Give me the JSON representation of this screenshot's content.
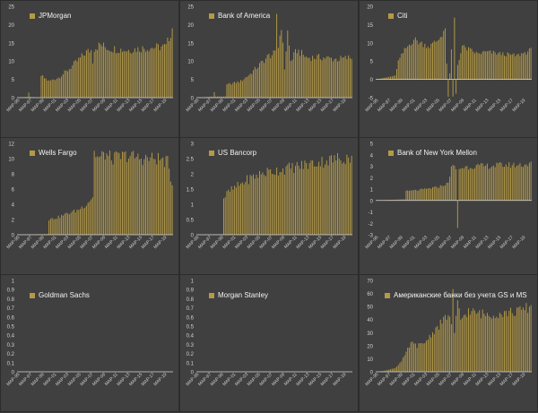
{
  "bar_color": "#b59a45",
  "text_color": "#d0d0d0",
  "x_tick_labels": [
    "MAP-95",
    "MAP-97",
    "MAP-99",
    "MAP-01",
    "MAP-03",
    "MAP-05",
    "MAP-07",
    "MAP-09",
    "MAP-11",
    "MAP-13",
    "MAP-15",
    "MAP-17",
    "MAP-19"
  ],
  "chart_data": [
    {
      "type": "bar",
      "title": "JPMorgan",
      "legend": "JPMorgan",
      "ylim": [
        0,
        25
      ],
      "yticks": [
        0,
        5,
        10,
        15,
        20,
        25
      ],
      "x": [
        "1995-Q1",
        "2019-Q4"
      ],
      "anchors": [
        [
          0,
          0
        ],
        [
          6,
          0.2
        ],
        [
          7,
          1.5
        ],
        [
          8,
          0.2
        ],
        [
          14,
          0
        ],
        [
          15,
          6.0
        ],
        [
          20,
          4.5
        ],
        [
          26,
          5.5
        ],
        [
          32,
          7.5
        ],
        [
          38,
          10.0
        ],
        [
          44,
          12.5
        ],
        [
          47,
          13.0
        ],
        [
          48,
          10.0
        ],
        [
          49,
          13.5
        ],
        [
          53,
          14.5
        ],
        [
          58,
          13.5
        ],
        [
          70,
          13.0
        ],
        [
          80,
          13.5
        ],
        [
          95,
          14.0
        ],
        [
          99,
          19.0
        ]
      ]
    },
    {
      "type": "bar",
      "title": "Bank of America",
      "legend": "Bank of America",
      "ylim": [
        0,
        25
      ],
      "yticks": [
        0,
        5,
        10,
        15,
        20,
        25
      ],
      "x": [
        "1995-Q1",
        "2019-Q4"
      ],
      "anchors": [
        [
          0,
          0
        ],
        [
          10,
          0.3
        ],
        [
          11,
          1.5
        ],
        [
          12,
          0.3
        ],
        [
          18,
          0.3
        ],
        [
          19,
          3.5
        ],
        [
          28,
          4.5
        ],
        [
          34,
          6.5
        ],
        [
          40,
          9.0
        ],
        [
          46,
          11.5
        ],
        [
          50,
          12.0
        ],
        [
          51,
          23.0
        ],
        [
          52,
          14.0
        ],
        [
          54,
          20.0
        ],
        [
          56,
          8.0
        ],
        [
          58,
          18.0
        ],
        [
          60,
          10.0
        ],
        [
          64,
          13.0
        ],
        [
          70,
          11.0
        ],
        [
          80,
          11.0
        ],
        [
          90,
          10.5
        ],
        [
          99,
          11.0
        ]
      ]
    },
    {
      "type": "bar",
      "title": "Citi",
      "legend": "Citi",
      "ylim": [
        -5,
        20
      ],
      "yticks": [
        -5,
        0,
        5,
        10,
        15,
        20
      ],
      "x": [
        "1995-Q1",
        "2019-Q4"
      ],
      "anchors": [
        [
          0,
          0
        ],
        [
          12,
          1.0
        ],
        [
          14,
          5.0
        ],
        [
          18,
          8.0
        ],
        [
          24,
          11.0
        ],
        [
          28,
          10.0
        ],
        [
          34,
          9.0
        ],
        [
          40,
          11.0
        ],
        [
          44,
          14.0
        ],
        [
          45,
          4.0
        ],
        [
          46,
          -5.0
        ],
        [
          48,
          8.0
        ],
        [
          49,
          -4.5
        ],
        [
          50,
          16.5
        ],
        [
          51,
          -4.0
        ],
        [
          52,
          4.0
        ],
        [
          55,
          9.0
        ],
        [
          60,
          8.0
        ],
        [
          65,
          7.0
        ],
        [
          70,
          7.5
        ],
        [
          80,
          7.0
        ],
        [
          90,
          6.5
        ],
        [
          99,
          8.0
        ]
      ]
    },
    {
      "type": "bar",
      "title": "Wells Fargo",
      "legend": "Wells Fargo",
      "ylim": [
        0,
        12
      ],
      "yticks": [
        0,
        2,
        4,
        6,
        8,
        10,
        12
      ],
      "x": [
        "1995-Q1",
        "2019-Q4"
      ],
      "anchors": [
        [
          0,
          0
        ],
        [
          19,
          0.1
        ],
        [
          20,
          2.0
        ],
        [
          26,
          2.3
        ],
        [
          32,
          2.8
        ],
        [
          38,
          3.2
        ],
        [
          44,
          4.0
        ],
        [
          48,
          5.0
        ],
        [
          49,
          10.8
        ],
        [
          52,
          10.0
        ],
        [
          56,
          10.6
        ],
        [
          60,
          10.0
        ],
        [
          70,
          10.4
        ],
        [
          80,
          10.0
        ],
        [
          90,
          10.0
        ],
        [
          96,
          9.5
        ],
        [
          99,
          6.5
        ]
      ]
    },
    {
      "type": "bar",
      "title": "US Bancorp",
      "legend": "US Bancorp",
      "ylim": [
        0,
        3
      ],
      "yticks": [
        0,
        0.5,
        1,
        1.5,
        2,
        2.5,
        3
      ],
      "x": [
        "1995-Q1",
        "2019-Q4"
      ],
      "anchors": [
        [
          0,
          0
        ],
        [
          16,
          0.02
        ],
        [
          17,
          1.2
        ],
        [
          20,
          1.4
        ],
        [
          26,
          1.6
        ],
        [
          32,
          1.8
        ],
        [
          38,
          1.95
        ],
        [
          44,
          2.05
        ],
        [
          50,
          2.1
        ],
        [
          60,
          2.2
        ],
        [
          70,
          2.3
        ],
        [
          80,
          2.4
        ],
        [
          90,
          2.5
        ],
        [
          99,
          2.55
        ]
      ]
    },
    {
      "type": "bar",
      "title": "Bank of New York Mellon",
      "legend": "Bank of New York Mellon",
      "ylim": [
        -3,
        5
      ],
      "yticks": [
        -3,
        -2,
        -1,
        0,
        1,
        2,
        3,
        4,
        5
      ],
      "x": [
        "1995-Q1",
        "2019-Q4"
      ],
      "anchors": [
        [
          0,
          0
        ],
        [
          18,
          0.1
        ],
        [
          19,
          0.8
        ],
        [
          26,
          0.9
        ],
        [
          32,
          1.0
        ],
        [
          40,
          1.2
        ],
        [
          46,
          1.5
        ],
        [
          48,
          3.0
        ],
        [
          51,
          2.8
        ],
        [
          52,
          -2.3
        ],
        [
          53,
          2.8
        ],
        [
          56,
          2.9
        ],
        [
          62,
          3.0
        ],
        [
          70,
          3.0
        ],
        [
          80,
          3.1
        ],
        [
          90,
          3.1
        ],
        [
          99,
          3.2
        ]
      ]
    },
    {
      "type": "bar",
      "title": "Goldman Sachs",
      "legend": "Goldman Sachs",
      "ylim": [
        0,
        1
      ],
      "yticks": [
        0,
        0.1,
        0.2,
        0.3,
        0.4,
        0.5,
        0.6,
        0.7,
        0.8,
        0.9,
        1
      ],
      "x": [
        "1995-Q1",
        "2019-Q4"
      ],
      "anchors": [
        [
          0,
          0
        ],
        [
          99,
          0
        ]
      ]
    },
    {
      "type": "bar",
      "title": "Morgan Stanley",
      "legend": "Morgan Stanley",
      "ylim": [
        0,
        1
      ],
      "yticks": [
        0,
        0.1,
        0.2,
        0.3,
        0.4,
        0.5,
        0.6,
        0.7,
        0.8,
        0.9,
        1
      ],
      "x": [
        "1995-Q1",
        "2019-Q4"
      ],
      "anchors": [
        [
          0,
          0
        ],
        [
          99,
          0
        ]
      ]
    },
    {
      "type": "bar",
      "title": "Американские банки без учета GS и MS",
      "legend": "Американские банки без учета GS и MS",
      "ylim": [
        0,
        70
      ],
      "yticks": [
        0,
        10,
        20,
        30,
        40,
        50,
        60,
        70
      ],
      "x": [
        "1995-Q1",
        "2019-Q4"
      ],
      "anchors": [
        [
          0,
          0
        ],
        [
          6,
          1.0
        ],
        [
          12,
          3.0
        ],
        [
          16,
          8.0
        ],
        [
          18,
          12.0
        ],
        [
          22,
          22.0
        ],
        [
          26,
          20.0
        ],
        [
          30,
          21.0
        ],
        [
          36,
          30.0
        ],
        [
          42,
          38.0
        ],
        [
          46,
          44.0
        ],
        [
          48,
          37.0
        ],
        [
          49,
          60.0
        ],
        [
          50,
          28.0
        ],
        [
          52,
          52.0
        ],
        [
          54,
          40.0
        ],
        [
          58,
          46.0
        ],
        [
          64,
          45.0
        ],
        [
          70,
          44.0
        ],
        [
          80,
          45.0
        ],
        [
          90,
          46.0
        ],
        [
          99,
          50.0
        ]
      ]
    }
  ]
}
